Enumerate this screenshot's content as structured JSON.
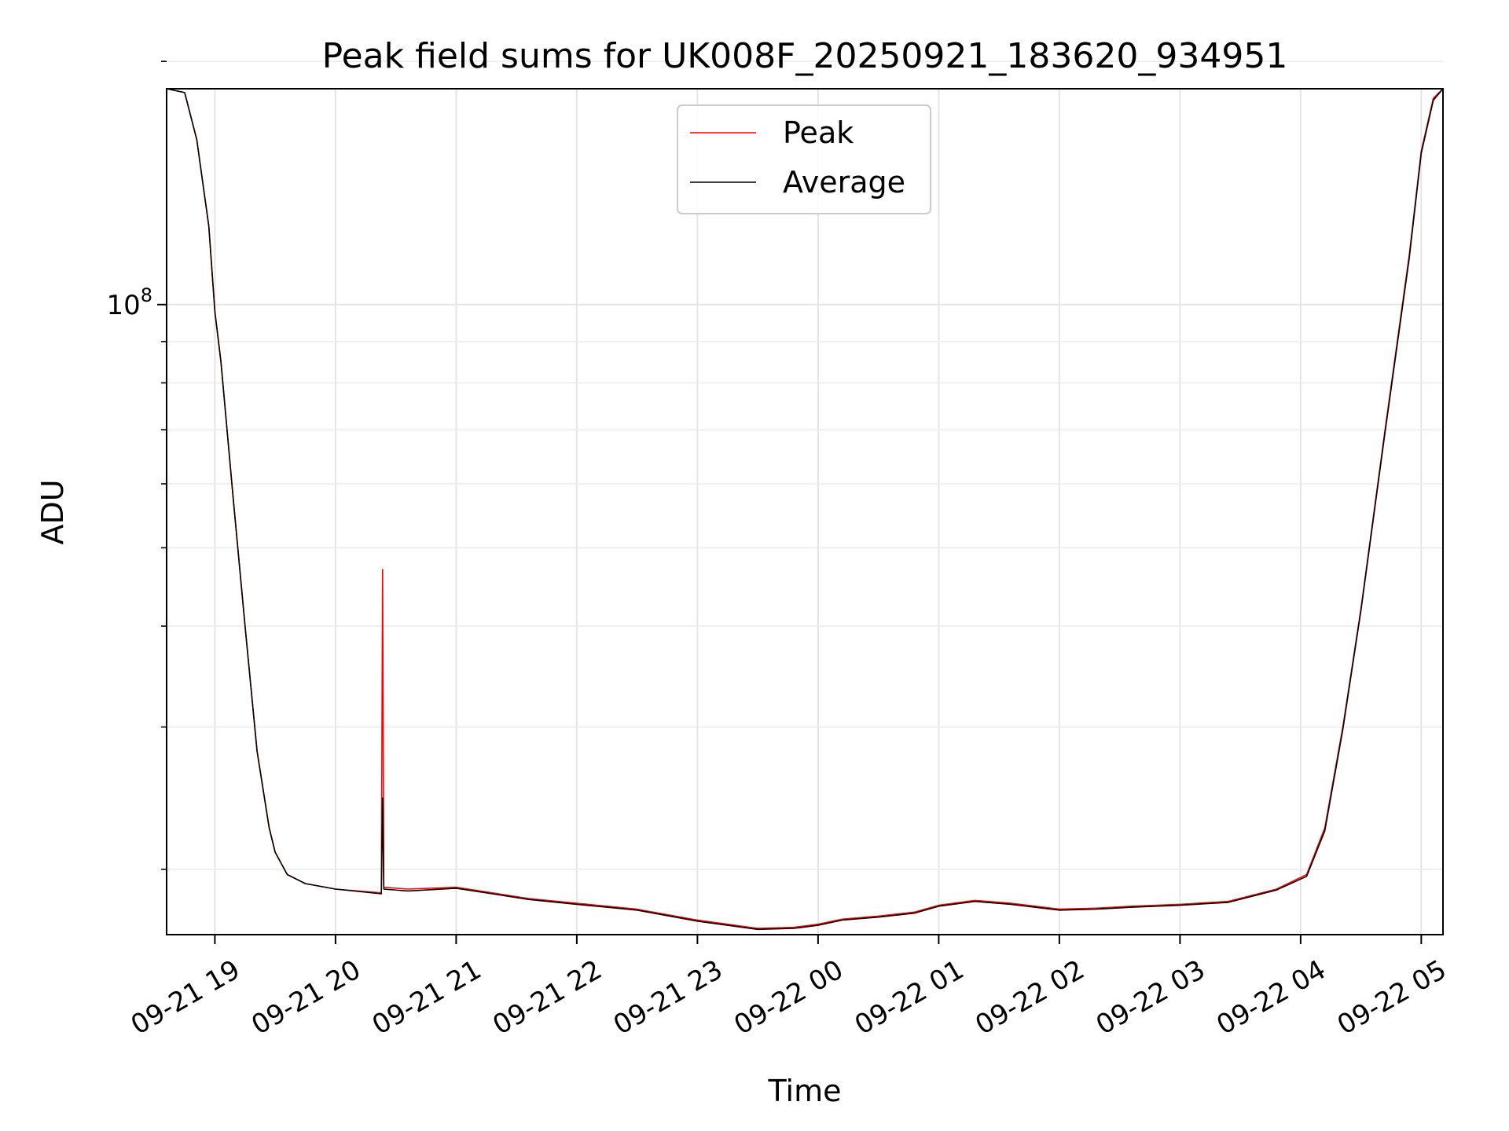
{
  "chart_data": {
    "type": "line",
    "title": "Peak field sums for UK008F_20250921_183620_934951",
    "xlabel": "Time",
    "ylabel": "ADU",
    "y_scale": "log",
    "ylim": [
      16600000,
      185000000
    ],
    "y_major_tick": {
      "value": 100000000,
      "base": "10",
      "exponent": "8"
    },
    "y_minor_ticks": [
      20000000,
      30000000,
      40000000,
      50000000,
      60000000,
      70000000,
      80000000,
      90000000,
      200000000
    ],
    "x_unit": "hours since 2025-09-21 18:00",
    "xlim": [
      0.6,
      11.18
    ],
    "x_ticks": [
      {
        "value": 1,
        "label": "09-21 19"
      },
      {
        "value": 2,
        "label": "09-21 20"
      },
      {
        "value": 3,
        "label": "09-21 21"
      },
      {
        "value": 4,
        "label": "09-21 22"
      },
      {
        "value": 5,
        "label": "09-21 23"
      },
      {
        "value": 6,
        "label": "09-22 00"
      },
      {
        "value": 7,
        "label": "09-22 01"
      },
      {
        "value": 8,
        "label": "09-22 02"
      },
      {
        "value": 9,
        "label": "09-22 03"
      },
      {
        "value": 10,
        "label": "09-22 04"
      },
      {
        "value": 11,
        "label": "09-22 05"
      }
    ],
    "grid": true,
    "legend": {
      "position": "upper-center"
    },
    "series": [
      {
        "name": "Peak",
        "color": "#ff0000",
        "x": [
          0.6,
          0.75,
          0.85,
          0.95,
          1.0,
          1.05,
          1.15,
          1.25,
          1.35,
          1.45,
          1.5,
          1.6,
          1.75,
          2.0,
          2.38,
          2.39,
          2.4,
          2.6,
          3.0,
          3.3,
          3.6,
          4.0,
          4.5,
          5.0,
          5.5,
          5.8,
          6.0,
          6.2,
          6.5,
          6.8,
          7.0,
          7.3,
          7.6,
          8.0,
          8.3,
          8.6,
          9.0,
          9.4,
          9.8,
          10.05,
          10.2,
          10.35,
          10.5,
          10.7,
          10.9,
          11.0,
          11.1,
          11.18
        ],
        "y": [
          185000000,
          183000000,
          160000000,
          125000000,
          98000000,
          85000000,
          58000000,
          40000000,
          28000000,
          22500000,
          21000000,
          19700000,
          19200000,
          18900000,
          18700000,
          47000000,
          19000000,
          18900000,
          19000000,
          18700000,
          18400000,
          18150000,
          17850000,
          17300000,
          16900000,
          16950000,
          17100000,
          17350000,
          17500000,
          17700000,
          18050000,
          18300000,
          18150000,
          17850000,
          17900000,
          18000000,
          18100000,
          18250000,
          18900000,
          19700000,
          22500000,
          30000000,
          42000000,
          70000000,
          115000000,
          155000000,
          180000000,
          185000000
        ]
      },
      {
        "name": "Average",
        "color": "#000000",
        "x": [
          0.6,
          0.75,
          0.85,
          0.95,
          1.0,
          1.05,
          1.15,
          1.25,
          1.35,
          1.45,
          1.5,
          1.6,
          1.75,
          2.0,
          2.38,
          2.39,
          2.4,
          2.6,
          3.0,
          3.3,
          3.6,
          4.0,
          4.5,
          5.0,
          5.5,
          5.8,
          6.0,
          6.2,
          6.5,
          6.8,
          7.0,
          7.3,
          7.6,
          8.0,
          8.3,
          8.6,
          9.0,
          9.4,
          9.8,
          10.05,
          10.2,
          10.35,
          10.5,
          10.7,
          10.9,
          11.0,
          11.1,
          11.18
        ],
        "y": [
          185000000,
          183000000,
          160000000,
          125000000,
          98000000,
          85000000,
          58000000,
          40000000,
          28000000,
          22500000,
          21000000,
          19700000,
          19200000,
          18900000,
          18650000,
          24500000,
          18900000,
          18800000,
          18950000,
          18650000,
          18350000,
          18100000,
          17800000,
          17250000,
          16850000,
          16900000,
          17050000,
          17300000,
          17450000,
          17650000,
          18000000,
          18250000,
          18100000,
          17800000,
          17850000,
          17950000,
          18050000,
          18200000,
          18850000,
          19600000,
          22300000,
          29800000,
          41800000,
          69500000,
          114000000,
          154000000,
          179000000,
          185000000
        ]
      }
    ]
  }
}
